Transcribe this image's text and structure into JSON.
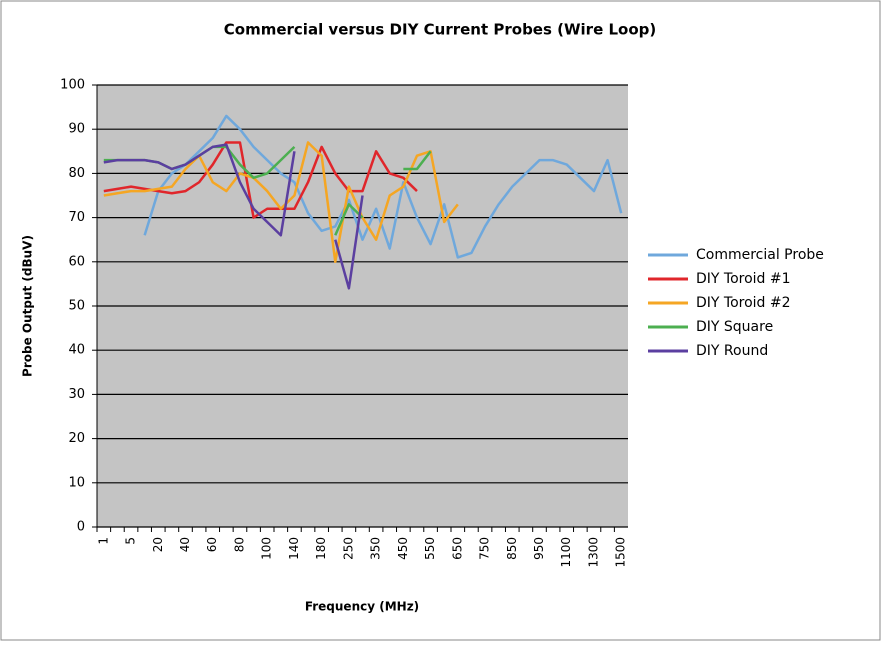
{
  "chart_data": {
    "type": "line",
    "title": "Commercial versus DIY Current Probes (Wire Loop)",
    "x_label": "Frequency (MHz)",
    "y_label": "Probe Output (dBuV)",
    "categories": [
      "1",
      null,
      "5",
      null,
      "20",
      null,
      "40",
      null,
      "60",
      null,
      "80",
      null,
      "100",
      null,
      "140",
      null,
      "180",
      null,
      "250",
      null,
      "350",
      null,
      "450",
      null,
      "550",
      null,
      "650",
      null,
      "750",
      null,
      "850",
      null,
      "950",
      null,
      "1100",
      null,
      "1300",
      null,
      "1500"
    ],
    "ylim": [
      0,
      100
    ],
    "yticks": [
      0,
      10,
      20,
      30,
      40,
      50,
      60,
      70,
      80,
      90,
      100
    ],
    "grid": true,
    "legend": "right",
    "series": [
      {
        "name": "Commercial Probe",
        "color": "#6fa8dc",
        "values": [
          null,
          null,
          null,
          66,
          76,
          80,
          82,
          85,
          88,
          93,
          90,
          86,
          83,
          80,
          78,
          71,
          67,
          68,
          74,
          65,
          72,
          63,
          78,
          70,
          64,
          73,
          61,
          62,
          68,
          73,
          77,
          80,
          83,
          83,
          82,
          79,
          76,
          83,
          71
        ]
      },
      {
        "name": "DIY Toroid #1",
        "color": "#e0262b",
        "values": [
          76,
          76.5,
          77,
          76.5,
          76,
          75.5,
          76,
          78,
          82,
          87,
          87,
          70,
          72,
          72,
          72,
          78,
          86,
          80,
          76,
          76,
          85,
          80,
          79,
          76,
          null,
          null,
          null,
          null,
          null,
          null,
          null,
          null,
          null,
          null,
          null,
          null,
          null,
          null,
          null
        ]
      },
      {
        "name": "DIY Toroid #2",
        "color": "#f5a623",
        "values": [
          75,
          75.5,
          76,
          76,
          76.5,
          77,
          81,
          84,
          78,
          76,
          80,
          79,
          76,
          72,
          75,
          87,
          84,
          60,
          77,
          70,
          65,
          75,
          77,
          84,
          85,
          69,
          73,
          null,
          null,
          null,
          null,
          null,
          null,
          null,
          null,
          null,
          null,
          null,
          null
        ]
      },
      {
        "name": "DIY Square",
        "color": "#4caf50",
        "values": [
          83,
          83,
          83,
          83,
          82.5,
          81,
          82,
          84,
          86,
          86,
          82,
          79,
          80,
          83,
          86,
          null,
          null,
          66,
          73,
          70,
          null,
          null,
          81,
          81,
          85,
          null,
          null,
          null,
          null,
          null,
          null,
          null,
          null,
          null,
          null,
          null,
          null,
          null,
          null
        ]
      },
      {
        "name": "DIY Round",
        "color": "#5b3fa0",
        "values": [
          82.5,
          83,
          83,
          83,
          82.5,
          81,
          82,
          84,
          86,
          86.5,
          78,
          72,
          69,
          66,
          85,
          null,
          null,
          65,
          54,
          75,
          null,
          null,
          null,
          null,
          null,
          null,
          null,
          null,
          null,
          null,
          null,
          null,
          null,
          null,
          null,
          null,
          null,
          null,
          null
        ]
      }
    ]
  }
}
